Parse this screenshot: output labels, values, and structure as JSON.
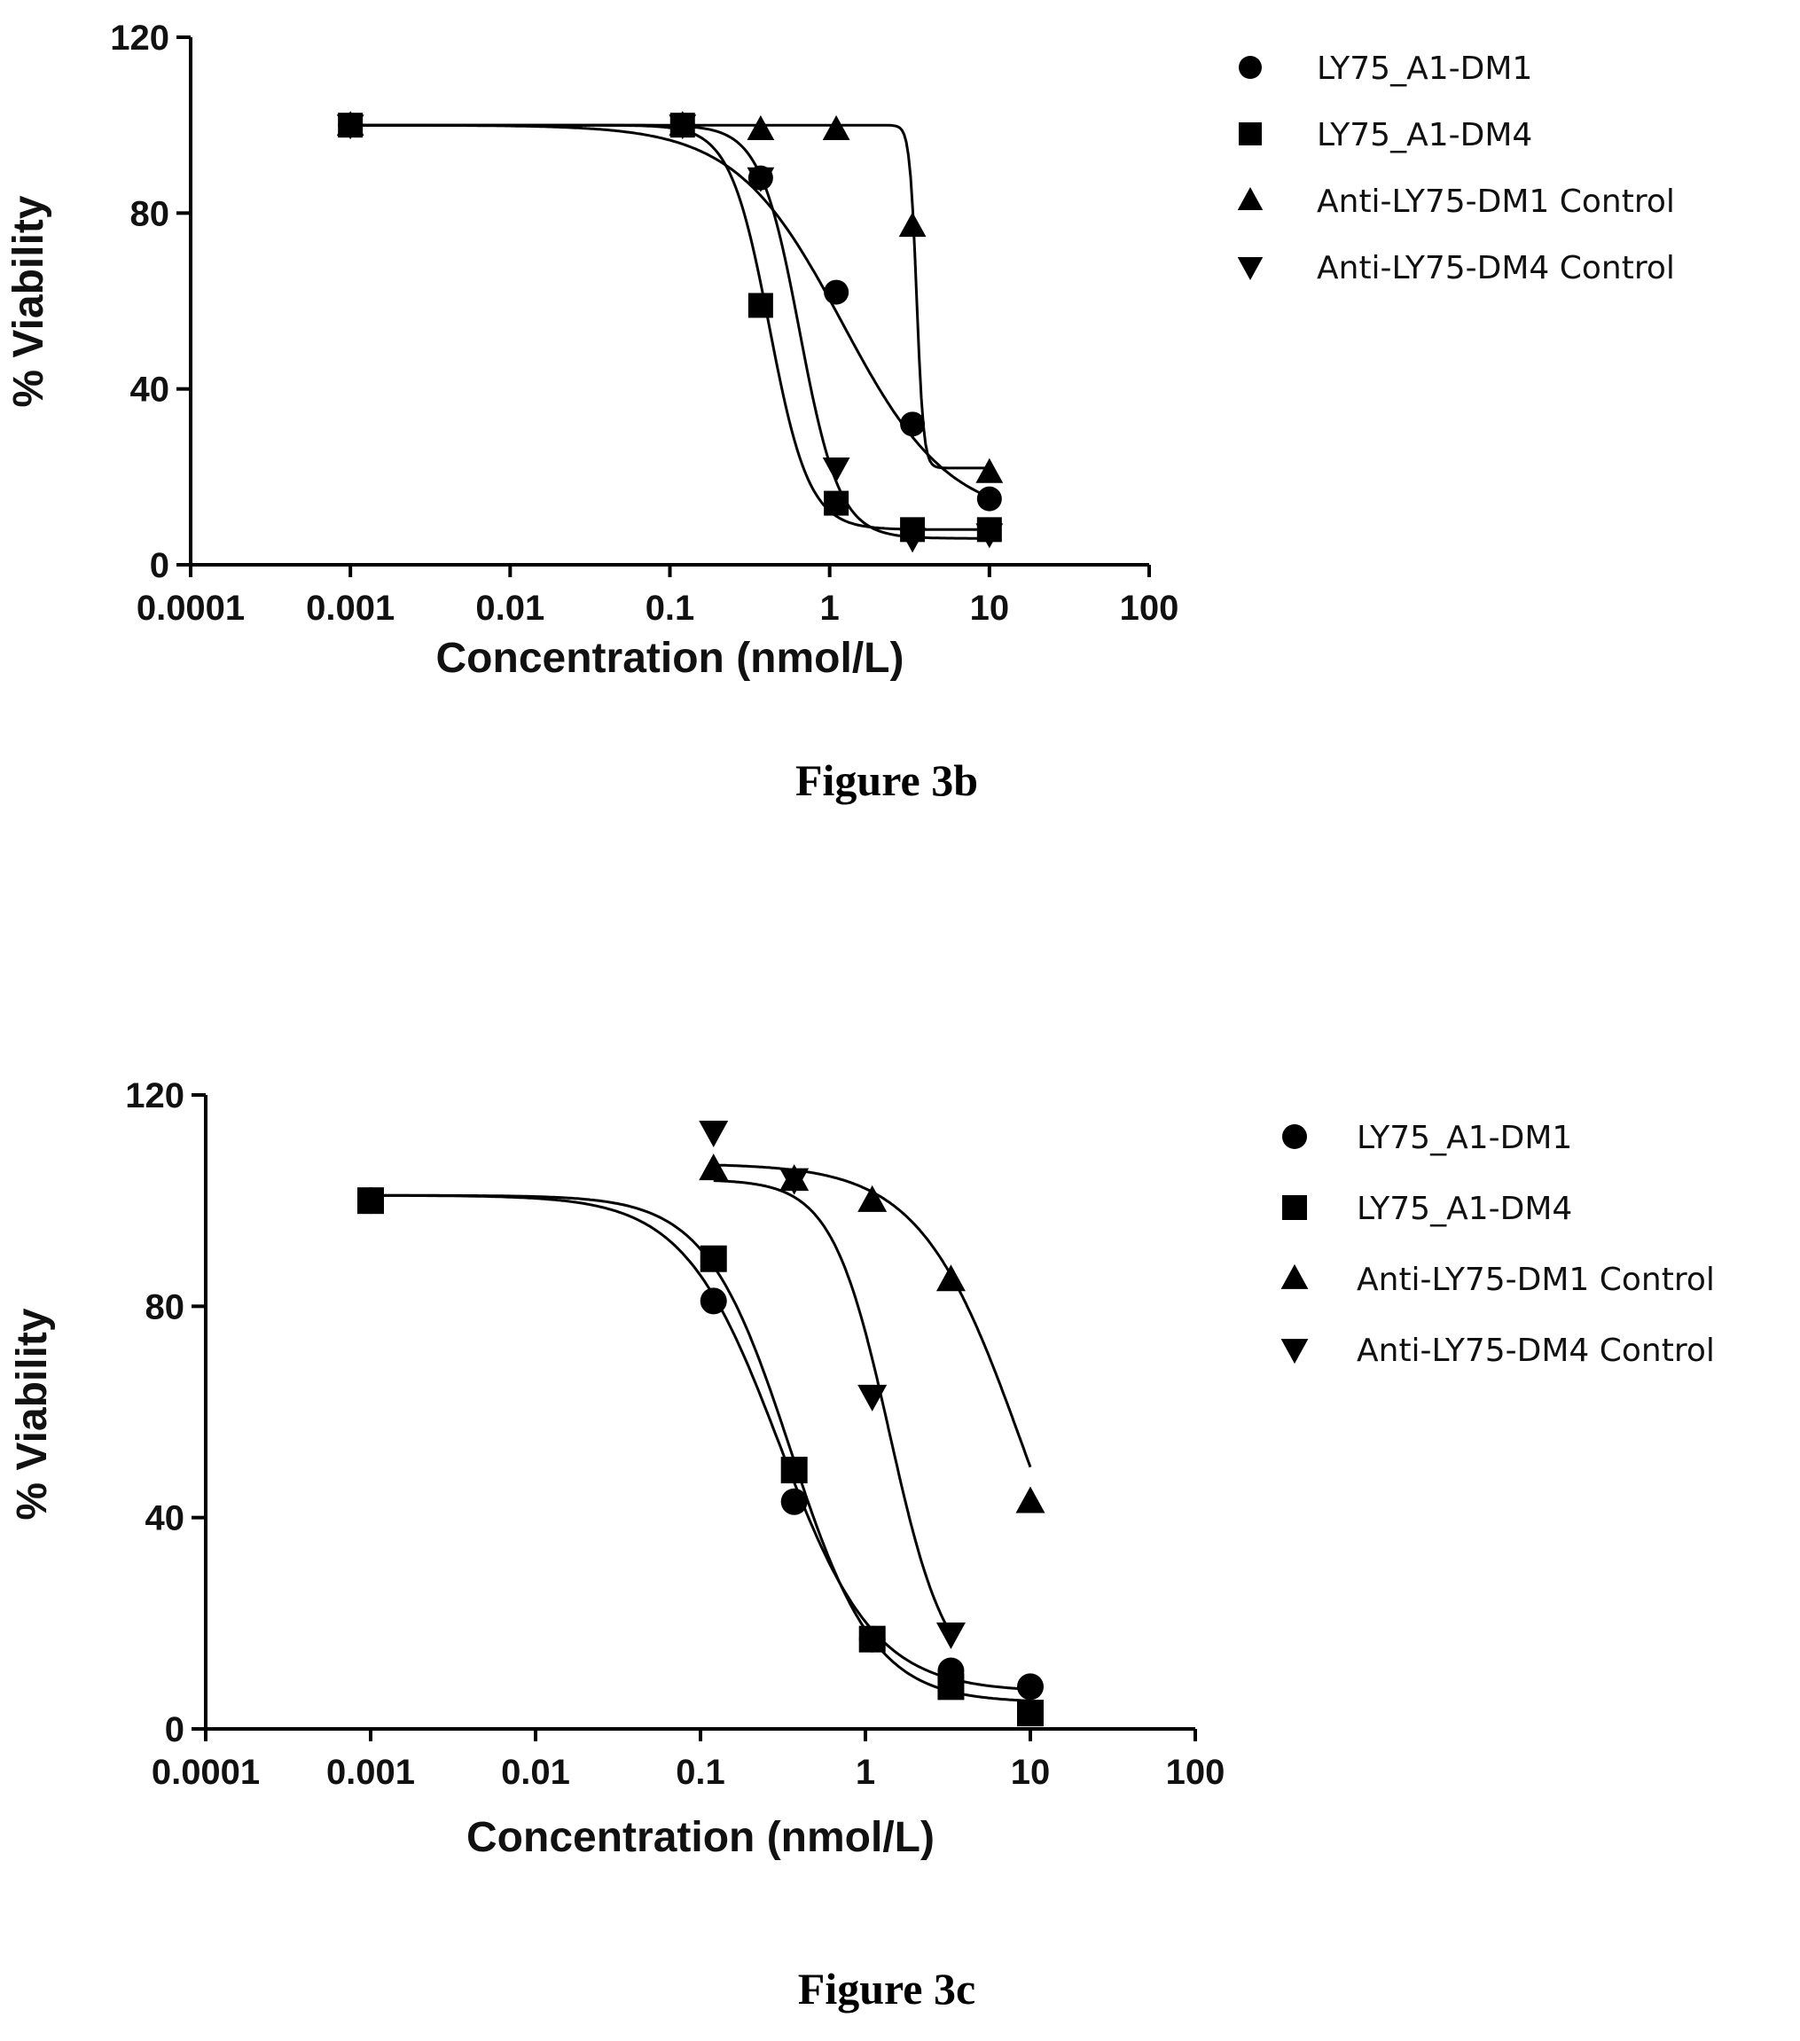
{
  "chart_data": [
    {
      "type": "scatter",
      "caption": "Figure 3b",
      "xlabel": "Concentration (nmol/L)",
      "ylabel": "% Viability",
      "xscale": "log",
      "xlim": [
        0.0001,
        100
      ],
      "ylim": [
        0,
        120
      ],
      "xticks": [
        0.0001,
        0.001,
        0.01,
        0.1,
        1,
        10,
        100
      ],
      "xtick_labels": [
        "0.0001",
        "0.001",
        "0.01",
        "0.1",
        "1",
        "10",
        "100"
      ],
      "yticks": [
        0,
        40,
        80,
        120
      ],
      "ytick_labels": [
        "0",
        "40",
        "80",
        "120"
      ],
      "legend_position": "right",
      "grid": false,
      "series": [
        {
          "name": "LY75_A1-DM1",
          "marker": "circle",
          "x": [
            0.001,
            0.12,
            0.37,
            1.1,
            3.3,
            10
          ],
          "y": [
            100,
            100,
            88,
            62,
            32,
            15
          ],
          "fit": {
            "top": 100,
            "bottom": 10,
            "ic50": 1.2,
            "hill": 1.3
          }
        },
        {
          "name": "LY75_A1-DM4",
          "marker": "square",
          "x": [
            0.001,
            0.12,
            0.37,
            1.1,
            3.3,
            10
          ],
          "y": [
            100,
            100,
            59,
            14,
            8,
            8
          ],
          "fit": {
            "top": 100,
            "bottom": 8,
            "ic50": 0.42,
            "hill": 3.5
          }
        },
        {
          "name": "Anti-LY75-DM1 Control",
          "marker": "triangle-up",
          "x": [
            0.001,
            0.12,
            0.37,
            1.1,
            3.3,
            10
          ],
          "y": [
            100,
            100,
            99,
            99,
            77,
            21
          ],
          "fit": {
            "top": 100,
            "bottom": 22,
            "ic50": 3.5,
            "hill": 20
          }
        },
        {
          "name": "Anti-LY75-DM4 Control",
          "marker": "triangle-down",
          "x": [
            0.001,
            0.12,
            0.37,
            1.1,
            3.3,
            10
          ],
          "y": [
            100,
            100,
            88,
            22,
            6,
            7
          ],
          "fit": {
            "top": 100,
            "bottom": 6,
            "ic50": 0.65,
            "hill": 3.5
          }
        }
      ]
    },
    {
      "type": "scatter",
      "caption": "Figure 3c",
      "xlabel": "Concentration (nmol/L)",
      "ylabel": "% Viability",
      "xscale": "log",
      "xlim": [
        0.0001,
        100
      ],
      "ylim": [
        0,
        120
      ],
      "xticks": [
        0.0001,
        0.001,
        0.01,
        0.1,
        1,
        10,
        100
      ],
      "xtick_labels": [
        "0.0001",
        "0.001",
        "0.01",
        "0.1",
        "1",
        "10",
        "100"
      ],
      "yticks": [
        0,
        40,
        80,
        120
      ],
      "ytick_labels": [
        "0",
        "40",
        "80",
        "120"
      ],
      "legend_position": "right",
      "grid": false,
      "series": [
        {
          "name": "LY75_A1-DM1",
          "marker": "circle",
          "x": [
            0.001,
            0.12,
            0.37,
            1.1,
            3.3,
            10
          ],
          "y": [
            100,
            81,
            43,
            17,
            11,
            8
          ],
          "fit": {
            "top": 101,
            "bottom": 7,
            "ic50": 0.3,
            "hill": 1.5
          }
        },
        {
          "name": "LY75_A1-DM4",
          "marker": "square",
          "x": [
            0.001,
            0.12,
            0.37,
            1.1,
            3.3,
            10
          ],
          "y": [
            100,
            89,
            49,
            17,
            8,
            3
          ],
          "fit": {
            "top": 101,
            "bottom": 5,
            "ic50": 0.35,
            "hill": 1.7
          }
        },
        {
          "name": "Anti-LY75-DM1 Control",
          "marker": "triangle-up",
          "x": [
            0.12,
            0.37,
            1.1,
            3.3,
            10
          ],
          "y": [
            106,
            104,
            100,
            85,
            43
          ],
          "fit": {
            "top": 107,
            "bottom": 0,
            "ic50": 9,
            "hill": 1.4
          }
        },
        {
          "name": "Anti-LY75-DM4 Control",
          "marker": "triangle-down",
          "x": [
            0.12,
            0.37,
            1.1,
            3.3
          ],
          "y": [
            113,
            104,
            63,
            18
          ],
          "fit": {
            "top": 104,
            "bottom": 8,
            "ic50": 1.4,
            "hill": 2.5
          }
        }
      ]
    }
  ]
}
